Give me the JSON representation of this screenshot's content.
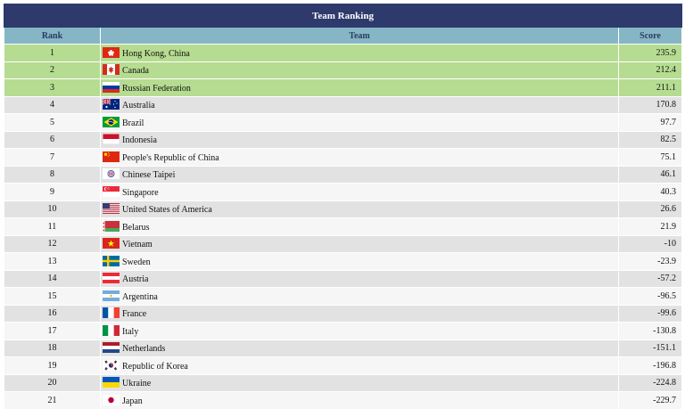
{
  "table": {
    "title": "Team Ranking",
    "headers": {
      "rank": "Rank",
      "team": "Team",
      "score": "Score"
    },
    "rows": [
      {
        "rank": "1",
        "team": "Hong Kong, China",
        "score": "235.9",
        "flag": "hong-kong-flag-icon",
        "tier": "top"
      },
      {
        "rank": "2",
        "team": "Canada",
        "score": "212.4",
        "flag": "canada-flag-icon",
        "tier": "top"
      },
      {
        "rank": "3",
        "team": "Russian Federation",
        "score": "211.1",
        "flag": "russia-flag-icon",
        "tier": "top"
      },
      {
        "rank": "4",
        "team": "Australia",
        "score": "170.8",
        "flag": "australia-flag-icon",
        "tier": "even"
      },
      {
        "rank": "5",
        "team": "Brazil",
        "score": "97.7",
        "flag": "brazil-flag-icon",
        "tier": "odd"
      },
      {
        "rank": "6",
        "team": "Indonesia",
        "score": "82.5",
        "flag": "indonesia-flag-icon",
        "tier": "even"
      },
      {
        "rank": "7",
        "team": "People's Republic of China",
        "score": "75.1",
        "flag": "china-flag-icon",
        "tier": "odd"
      },
      {
        "rank": "8",
        "team": "Chinese Taipei",
        "score": "46.1",
        "flag": "chinese-taipei-flag-icon",
        "tier": "even"
      },
      {
        "rank": "9",
        "team": "Singapore",
        "score": "40.3",
        "flag": "singapore-flag-icon",
        "tier": "odd"
      },
      {
        "rank": "10",
        "team": "United States of America",
        "score": "26.6",
        "flag": "usa-flag-icon",
        "tier": "even"
      },
      {
        "rank": "11",
        "team": "Belarus",
        "score": "21.9",
        "flag": "belarus-flag-icon",
        "tier": "odd"
      },
      {
        "rank": "12",
        "team": "Vietnam",
        "score": "-10",
        "flag": "vietnam-flag-icon",
        "tier": "even"
      },
      {
        "rank": "13",
        "team": "Sweden",
        "score": "-23.9",
        "flag": "sweden-flag-icon",
        "tier": "odd"
      },
      {
        "rank": "14",
        "team": "Austria",
        "score": "-57.2",
        "flag": "austria-flag-icon",
        "tier": "even"
      },
      {
        "rank": "15",
        "team": "Argentina",
        "score": "-96.5",
        "flag": "argentina-flag-icon",
        "tier": "odd"
      },
      {
        "rank": "16",
        "team": "France",
        "score": "-99.6",
        "flag": "france-flag-icon",
        "tier": "even"
      },
      {
        "rank": "17",
        "team": "Italy",
        "score": "-130.8",
        "flag": "italy-flag-icon",
        "tier": "odd"
      },
      {
        "rank": "18",
        "team": "Netherlands",
        "score": "-151.1",
        "flag": "netherlands-flag-icon",
        "tier": "even"
      },
      {
        "rank": "19",
        "team": "Republic of Korea",
        "score": "-196.8",
        "flag": "korea-flag-icon",
        "tier": "odd"
      },
      {
        "rank": "20",
        "team": "Ukraine",
        "score": "-224.8",
        "flag": "ukraine-flag-icon",
        "tier": "even"
      },
      {
        "rank": "21",
        "team": "Japan",
        "score": "-229.7",
        "flag": "japan-flag-icon",
        "tier": "odd"
      }
    ]
  },
  "colors": {
    "title_bg": "#2e3a6b",
    "header_bg": "#86b6c6",
    "top_row_bg": "#b6dc91",
    "even_row_bg": "#e2e2e2",
    "odd_row_bg": "#f6f6f6"
  }
}
